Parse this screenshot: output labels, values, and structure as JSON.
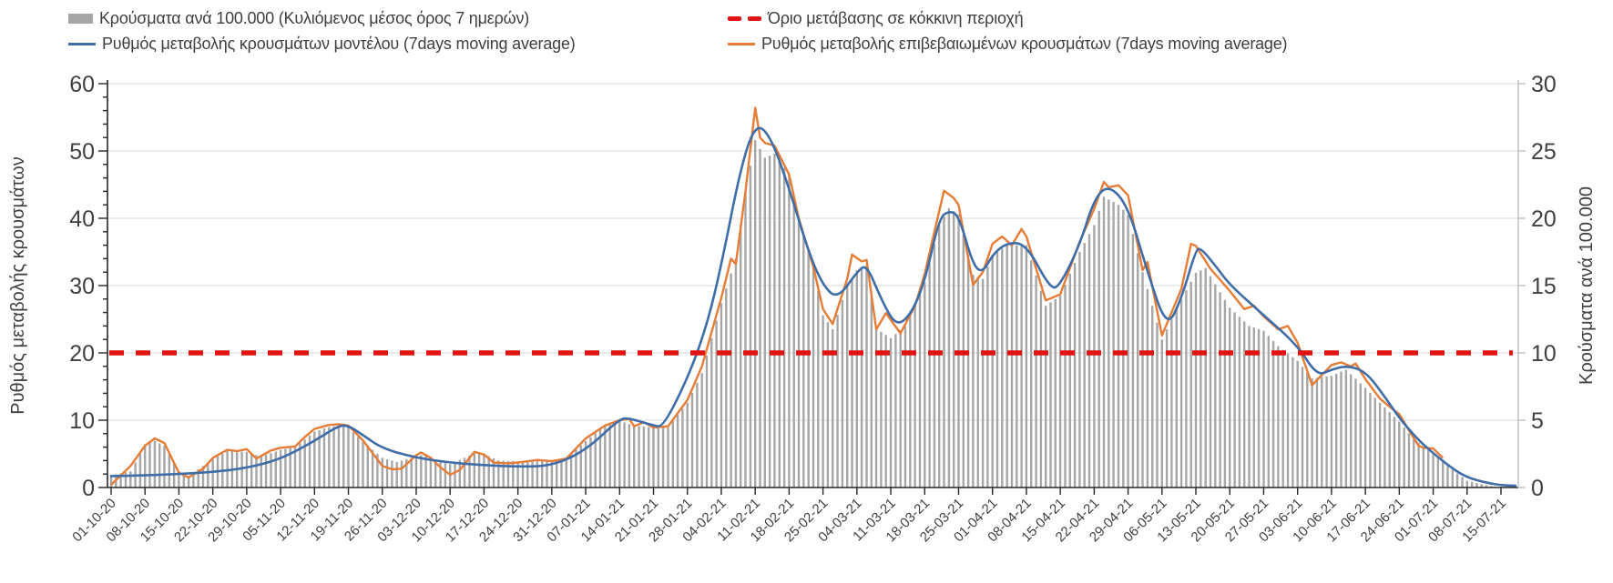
{
  "legend": {
    "items": [
      {
        "id": "cases-bars",
        "label": "Κρούσματα ανά 100.000 (Κυλιόμενος μέσος όρος 7 ημερών)",
        "marker": "bar-swatch",
        "color": "#a6a6a6"
      },
      {
        "id": "red-threshold",
        "label": "Όριο μετάβασης σε κόκκινη περιοχή",
        "marker": "dashed-line",
        "color": "#e01212"
      },
      {
        "id": "model-rate",
        "label": "Ρυθμός μεταβολής κρουσμάτων μοντέλου (7days moving average)",
        "marker": "line",
        "color": "#3f6da8"
      },
      {
        "id": "confirmed-rate",
        "label": "Ρυθμός μεταβολής επιβεβαιωμένων κρουσμάτων (7days moving average)",
        "marker": "line",
        "color": "#e67c36"
      }
    ]
  },
  "colors": {
    "bars": "#a6a6a6",
    "model": "#3f6da8",
    "confirmed": "#e67c36",
    "threshold": "#e01212",
    "grid": "#d9d9d9",
    "axis_dark": "#262626",
    "axis_light": "#bfbfbf",
    "label": "#404040"
  },
  "chart_data": {
    "type": "bar+line combo, daily data with weekly ticks",
    "title": "",
    "x_tick_labels": [
      "01-10-20",
      "08-10-20",
      "15-10-20",
      "22-10-20",
      "29-10-20",
      "05-11-20",
      "12-11-20",
      "19-11-20",
      "26-11-20",
      "03-12-20",
      "10-12-20",
      "17-12-20",
      "24-12-20",
      "31-12-20",
      "07-01-21",
      "14-01-21",
      "21-01-21",
      "28-01-21",
      "04-02-21",
      "11-02-21",
      "18-02-21",
      "25-02-21",
      "04-03-21",
      "11-03-21",
      "18-03-21",
      "25-03-21",
      "01-04-21",
      "08-04-21",
      "15-04-21",
      "22-04-21",
      "29-04-21",
      "06-05-21",
      "13-05-21",
      "20-05-21",
      "27-05-21",
      "03-06-21",
      "10-06-21",
      "17-06-21",
      "24-06-21",
      "01-07-21",
      "08-07-21",
      "15-07-21"
    ],
    "days_per_tick": 7,
    "total_days": 287,
    "left_axis": {
      "title": "Ρυθμός μεταβολής κρουσμάτων",
      "min": 0,
      "max": 60,
      "ticks": [
        0,
        10,
        20,
        30,
        40,
        50,
        60
      ],
      "minor_step": 2
    },
    "right_axis": {
      "title": "Κρούσματα ανά 100.000",
      "min": 0,
      "max": 30,
      "ticks": [
        0,
        5,
        10,
        15,
        20,
        25,
        30
      ]
    },
    "threshold": {
      "name": "Όριο μετάβασης σε κόκκινη περιοχή",
      "axis": "left",
      "value": 20
    },
    "series": [
      {
        "name": "Ρυθμός μεταβολής κρουσμάτων μοντέλου (7days moving average)",
        "type": "line",
        "axis": "left",
        "smooth": true,
        "points": [
          [
            0,
            1.7
          ],
          [
            7,
            1.8
          ],
          [
            14,
            2.0
          ],
          [
            21,
            2.3
          ],
          [
            28,
            2.9
          ],
          [
            35,
            4.2
          ],
          [
            42,
            6.9
          ],
          [
            47,
            9.2
          ],
          [
            49,
            9.2
          ],
          [
            52,
            7.8
          ],
          [
            56,
            5.8
          ],
          [
            63,
            4.4
          ],
          [
            70,
            3.7
          ],
          [
            77,
            3.3
          ],
          [
            84,
            3.1
          ],
          [
            91,
            3.2
          ],
          [
            98,
            5.5
          ],
          [
            105,
            10.2
          ],
          [
            107,
            10.3
          ],
          [
            112,
            9.2
          ],
          [
            114,
            9.0
          ],
          [
            119,
            16.1
          ],
          [
            123,
            24.0
          ],
          [
            126,
            33.0
          ],
          [
            130,
            47.5
          ],
          [
            133,
            54.0
          ],
          [
            136,
            52.5
          ],
          [
            140,
            44.5
          ],
          [
            144,
            35.0
          ],
          [
            147,
            30.0
          ],
          [
            150,
            28.0
          ],
          [
            154,
            32.0
          ],
          [
            156,
            33.2
          ],
          [
            159,
            28.0
          ],
          [
            162,
            24.0
          ],
          [
            165,
            25.5
          ],
          [
            168,
            30.5
          ],
          [
            171,
            40.0
          ],
          [
            173,
            41.1
          ],
          [
            175,
            40.5
          ],
          [
            178,
            33.0
          ],
          [
            180,
            31.9
          ],
          [
            182,
            34.6
          ],
          [
            185,
            36.4
          ],
          [
            189,
            36.2
          ],
          [
            194,
            29.4
          ],
          [
            196,
            30.1
          ],
          [
            200,
            36.0
          ],
          [
            203,
            42.9
          ],
          [
            206,
            45.0
          ],
          [
            210,
            41.8
          ],
          [
            214,
            32.0
          ],
          [
            218,
            23.6
          ],
          [
            221,
            28.0
          ],
          [
            224,
            35.3
          ],
          [
            225,
            35.6
          ],
          [
            228,
            33.0
          ],
          [
            231,
            30.1
          ],
          [
            238,
            25.6
          ],
          [
            245,
            21.1
          ],
          [
            249,
            16.6
          ],
          [
            252,
            17.5
          ],
          [
            255,
            18.1
          ],
          [
            259,
            17.3
          ],
          [
            263,
            13.5
          ],
          [
            266,
            10.3
          ],
          [
            270,
            7.0
          ],
          [
            273,
            5.1
          ],
          [
            277,
            2.8
          ],
          [
            280,
            1.5
          ],
          [
            284,
            0.7
          ],
          [
            287,
            0.35
          ],
          [
            290,
            0.25
          ]
        ]
      },
      {
        "name": "Ρυθμός μεταβολής επιβεβαιωμένων κρουσμάτων (7days moving average)",
        "type": "line",
        "axis": "left",
        "smooth": false,
        "points": [
          [
            0,
            0.4
          ],
          [
            4,
            3.2
          ],
          [
            7,
            6.2
          ],
          [
            9,
            7.3
          ],
          [
            11,
            6.6
          ],
          [
            14,
            2.2
          ],
          [
            16,
            1.5
          ],
          [
            19,
            2.8
          ],
          [
            21,
            4.4
          ],
          [
            24,
            5.6
          ],
          [
            26,
            5.4
          ],
          [
            28,
            5.7
          ],
          [
            30,
            4.3
          ],
          [
            33,
            5.5
          ],
          [
            35,
            5.9
          ],
          [
            38,
            6.1
          ],
          [
            40,
            7.5
          ],
          [
            42,
            8.7
          ],
          [
            45,
            9.3
          ],
          [
            47,
            9.4
          ],
          [
            49,
            9.2
          ],
          [
            52,
            7.0
          ],
          [
            56,
            3.2
          ],
          [
            58,
            2.7
          ],
          [
            60,
            2.8
          ],
          [
            63,
            4.8
          ],
          [
            64,
            5.2
          ],
          [
            66,
            4.4
          ],
          [
            68,
            3.0
          ],
          [
            70,
            1.9
          ],
          [
            72,
            2.6
          ],
          [
            75,
            5.3
          ],
          [
            77,
            4.9
          ],
          [
            79,
            3.7
          ],
          [
            82,
            3.6
          ],
          [
            84,
            3.7
          ],
          [
            88,
            4.1
          ],
          [
            91,
            3.9
          ],
          [
            94,
            4.3
          ],
          [
            98,
            7.3
          ],
          [
            102,
            9.2
          ],
          [
            105,
            10.0
          ],
          [
            107,
            10.2
          ],
          [
            108,
            9.1
          ],
          [
            110,
            9.7
          ],
          [
            112,
            8.9
          ],
          [
            115,
            9.1
          ],
          [
            119,
            13.0
          ],
          [
            122,
            18.0
          ],
          [
            126,
            28.2
          ],
          [
            128,
            34.0
          ],
          [
            129,
            33.2
          ],
          [
            131,
            44.0
          ],
          [
            133,
            56.4
          ],
          [
            134,
            52.0
          ],
          [
            135,
            51.2
          ],
          [
            137,
            50.8
          ],
          [
            140,
            46.5
          ],
          [
            142,
            40.0
          ],
          [
            145,
            32.8
          ],
          [
            147,
            26.5
          ],
          [
            149,
            24.3
          ],
          [
            152,
            31.0
          ],
          [
            153,
            34.6
          ],
          [
            155,
            33.6
          ],
          [
            156,
            33.8
          ],
          [
            158,
            23.5
          ],
          [
            160,
            25.9
          ],
          [
            163,
            22.9
          ],
          [
            166,
            27.0
          ],
          [
            168,
            31.7
          ],
          [
            170,
            38.0
          ],
          [
            172,
            44.1
          ],
          [
            174,
            43.0
          ],
          [
            175,
            42.0
          ],
          [
            178,
            30.1
          ],
          [
            180,
            32.0
          ],
          [
            182,
            36.2
          ],
          [
            184,
            37.3
          ],
          [
            186,
            36.0
          ],
          [
            188,
            38.4
          ],
          [
            189,
            37.3
          ],
          [
            193,
            27.8
          ],
          [
            196,
            28.7
          ],
          [
            200,
            36.5
          ],
          [
            203,
            41.4
          ],
          [
            205,
            45.4
          ],
          [
            206,
            44.6
          ],
          [
            208,
            44.9
          ],
          [
            210,
            43.4
          ],
          [
            213,
            32.3
          ],
          [
            214,
            33.5
          ],
          [
            217,
            22.6
          ],
          [
            221,
            29.5
          ],
          [
            223,
            36.2
          ],
          [
            224,
            35.9
          ],
          [
            227,
            32.5
          ],
          [
            231,
            29.2
          ],
          [
            234,
            26.5
          ],
          [
            236,
            27.0
          ],
          [
            238,
            25.4
          ],
          [
            241,
            23.5
          ],
          [
            243,
            24.0
          ],
          [
            245,
            21.5
          ],
          [
            248,
            15.2
          ],
          [
            252,
            18.2
          ],
          [
            254,
            18.6
          ],
          [
            256,
            18.0
          ],
          [
            257,
            18.4
          ],
          [
            259,
            16.1
          ],
          [
            262,
            13.2
          ],
          [
            264,
            12.0
          ],
          [
            266,
            10.9
          ],
          [
            268,
            8.5
          ],
          [
            270,
            6.2
          ],
          [
            271,
            5.9
          ],
          [
            273,
            5.8
          ],
          [
            275,
            4.4
          ]
        ]
      },
      {
        "name": "Κρούσματα ανά 100.000 (Κυλιόμενος μέσος όρος 7 ημερών)",
        "type": "bar",
        "axis": "right",
        "daily": true,
        "points": [
          [
            0,
            0.9
          ],
          [
            4,
            1.2
          ],
          [
            7,
            3.2
          ],
          [
            9,
            3.45
          ],
          [
            11,
            3.1
          ],
          [
            14,
            1.2
          ],
          [
            16,
            0.85
          ],
          [
            21,
            2.1
          ],
          [
            24,
            2.7
          ],
          [
            28,
            2.65
          ],
          [
            31,
            2.3
          ],
          [
            35,
            2.8
          ],
          [
            38,
            3.0
          ],
          [
            42,
            4.15
          ],
          [
            45,
            4.5
          ],
          [
            47,
            4.6
          ],
          [
            49,
            4.45
          ],
          [
            52,
            3.4
          ],
          [
            56,
            2.2
          ],
          [
            59,
            1.9
          ],
          [
            63,
            2.3
          ],
          [
            65,
            2.5
          ],
          [
            68,
            1.9
          ],
          [
            70,
            1.75
          ],
          [
            73,
            2.2
          ],
          [
            75,
            2.55
          ],
          [
            77,
            2.5
          ],
          [
            80,
            2.0
          ],
          [
            84,
            1.95
          ],
          [
            88,
            2.05
          ],
          [
            91,
            2.0
          ],
          [
            94,
            2.2
          ],
          [
            98,
            3.45
          ],
          [
            102,
            4.6
          ],
          [
            105,
            4.95
          ],
          [
            108,
            4.6
          ],
          [
            112,
            4.45
          ],
          [
            115,
            4.5
          ],
          [
            119,
            6.3
          ],
          [
            122,
            8.5
          ],
          [
            126,
            13.7
          ],
          [
            129,
            17.0
          ],
          [
            131,
            22.0
          ],
          [
            133,
            25.8
          ],
          [
            135,
            24.5
          ],
          [
            137,
            24.8
          ],
          [
            140,
            23.2
          ],
          [
            142,
            20.0
          ],
          [
            145,
            16.4
          ],
          [
            147,
            12.8
          ],
          [
            149,
            11.75
          ],
          [
            152,
            15.0
          ],
          [
            154,
            16.15
          ],
          [
            156,
            16.5
          ],
          [
            158,
            11.8
          ],
          [
            161,
            11.1
          ],
          [
            164,
            12.0
          ],
          [
            168,
            15.25
          ],
          [
            171,
            19.5
          ],
          [
            173,
            20.75
          ],
          [
            175,
            20.3
          ],
          [
            178,
            15.8
          ],
          [
            180,
            15.5
          ],
          [
            182,
            17.3
          ],
          [
            185,
            18.0
          ],
          [
            189,
            18.0
          ],
          [
            193,
            13.5
          ],
          [
            196,
            14.25
          ],
          [
            200,
            17.5
          ],
          [
            203,
            19.5
          ],
          [
            205,
            21.6
          ],
          [
            208,
            21.0
          ],
          [
            210,
            20.25
          ],
          [
            213,
            16.0
          ],
          [
            217,
            11.0
          ],
          [
            221,
            14.0
          ],
          [
            224,
            15.95
          ],
          [
            226,
            16.3
          ],
          [
            229,
            14.5
          ],
          [
            231,
            13.35
          ],
          [
            235,
            12.0
          ],
          [
            238,
            11.65
          ],
          [
            241,
            10.5
          ],
          [
            245,
            9.4
          ],
          [
            248,
            8.1
          ],
          [
            252,
            8.3
          ],
          [
            255,
            8.75
          ],
          [
            259,
            7.4
          ],
          [
            262,
            6.3
          ],
          [
            266,
            4.9
          ],
          [
            269,
            3.6
          ],
          [
            273,
            2.5
          ],
          [
            276,
            1.6
          ],
          [
            280,
            0.5
          ],
          [
            283,
            0.25
          ],
          [
            285,
            0.1
          ]
        ]
      }
    ]
  }
}
